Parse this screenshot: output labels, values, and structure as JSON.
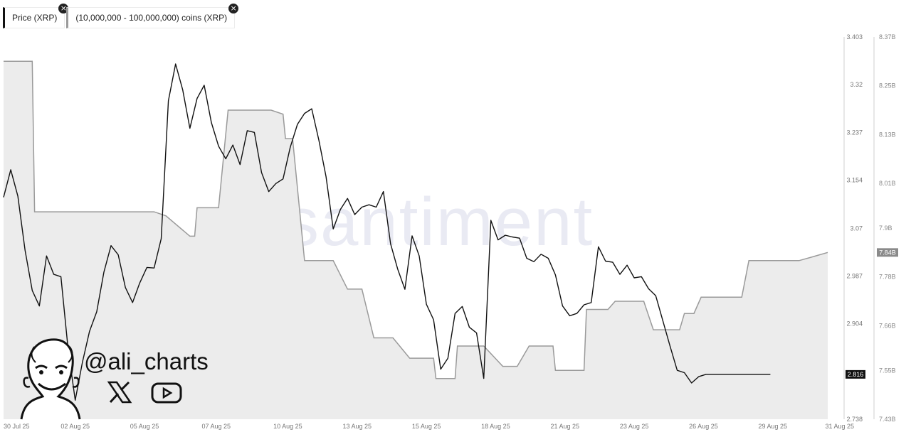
{
  "legend": {
    "price_label": "Price (XRP)",
    "holders_label": "(10,000,000 - 100,000,000) coins (XRP)",
    "close_icon": "×"
  },
  "watermark": "santiment",
  "branding": {
    "handle": "@ali_charts",
    "icons": [
      "x-logo-icon",
      "youtube-icon",
      "avatar-caricature"
    ]
  },
  "colors": {
    "price": "#111111",
    "holders_line": "#9a9a9a",
    "holders_fill": "#ececec",
    "axis": "#cfcfcf"
  },
  "chart_data": {
    "type": "line",
    "x_ticks": [
      "30 Jul 25",
      "02 Aug 25",
      "05 Aug 25",
      "07 Aug 25",
      "10 Aug 25",
      "13 Aug 25",
      "15 Aug 25",
      "18 Aug 25",
      "21 Aug 25",
      "23 Aug 25",
      "26 Aug 25",
      "29 Aug 25",
      "31 Aug 25"
    ],
    "y_left": {
      "ticks": [
        "3.403",
        "3.32",
        "3.237",
        "3.154",
        "3.07",
        "2.987",
        "2.904",
        "2.738"
      ],
      "range": [
        2.738,
        3.403
      ],
      "current_label": "2.816"
    },
    "y_right": {
      "ticks": [
        "8.37B",
        "8.25B",
        "8.13B",
        "8.01B",
        "7.9B",
        "7.78B",
        "7.66B",
        "7.55B",
        "7.43B"
      ],
      "range": [
        7.43,
        8.37
      ],
      "current_label": "7.84B"
    },
    "series": [
      {
        "name": "Price (XRP)",
        "axis": "left",
        "x": [
          0,
          0.3,
          0.6,
          0.9,
          1.2,
          1.5,
          1.8,
          2.1,
          2.4,
          2.7,
          3.0,
          3.3,
          3.6,
          3.9,
          4.2,
          4.5,
          4.8,
          5.1,
          5.4,
          5.7,
          6.0,
          6.3,
          6.6,
          6.9,
          7.2,
          7.5,
          7.8,
          8.1,
          8.4,
          8.7,
          9.0,
          9.3,
          9.6,
          9.9,
          10.2,
          10.5,
          10.8,
          11.1,
          11.4,
          11.7,
          12.0,
          12.3,
          12.6,
          12.9,
          13.2,
          13.5,
          13.8,
          14.1,
          14.4,
          14.7,
          15.0,
          15.3,
          15.6,
          15.9,
          16.2,
          16.5,
          16.8,
          17.1,
          17.4,
          17.7,
          18.0,
          18.3,
          18.6,
          18.9,
          19.2,
          19.5,
          19.8,
          20.1,
          20.4,
          20.7,
          21.0,
          21.3,
          21.6,
          21.9,
          22.2,
          22.5,
          22.8,
          23.1,
          23.4,
          23.7,
          24.0,
          24.3,
          24.6,
          24.9,
          25.2,
          25.5,
          25.8,
          26.1,
          26.4,
          26.7,
          27.0,
          27.3,
          27.6,
          27.9,
          28.2,
          28.5,
          28.8,
          29.1,
          29.4,
          29.7,
          30.0,
          30.3,
          30.6,
          30.9,
          31.2,
          31.5,
          31.8,
          32.1
        ],
        "values": [
          3.124,
          3.172,
          3.126,
          3.032,
          2.962,
          2.935,
          3.022,
          2.99,
          2.986,
          2.861,
          2.771,
          2.837,
          2.891,
          2.925,
          2.994,
          3.04,
          3.024,
          2.967,
          2.941,
          2.975,
          3.002,
          3.001,
          3.052,
          3.292,
          3.356,
          3.311,
          3.244,
          3.296,
          3.319,
          3.254,
          3.213,
          3.191,
          3.215,
          3.181,
          3.24,
          3.237,
          3.167,
          3.134,
          3.148,
          3.156,
          3.211,
          3.251,
          3.27,
          3.278,
          3.223,
          3.16,
          3.069,
          3.103,
          3.122,
          3.094,
          3.107,
          3.111,
          3.107,
          3.134,
          3.043,
          2.999,
          2.964,
          3.057,
          3.022,
          2.938,
          2.911,
          2.825,
          2.844,
          2.922,
          2.934,
          2.898,
          2.888,
          2.809,
          3.084,
          3.05,
          3.058,
          3.055,
          3.053,
          3.018,
          3.012,
          3.025,
          3.018,
          2.989,
          2.935,
          2.918,
          2.922,
          2.937,
          2.941,
          3.038,
          3.013,
          3.011,
          2.99,
          3.006,
          2.984,
          2.986,
          2.965,
          2.953,
          2.909,
          2.865,
          2.823,
          2.819,
          2.801,
          2.812,
          2.816,
          2.816,
          2.816,
          2.816,
          2.816,
          2.816,
          2.816,
          2.816,
          2.816,
          2.816
        ]
      },
      {
        "name": "(10,000,000 - 100,000,000) coins (XRP)",
        "axis": "right",
        "steps": [
          [
            0,
            8.31
          ],
          [
            1.2,
            8.31
          ],
          [
            1.3,
            7.94
          ],
          [
            2.4,
            7.94
          ],
          [
            3.4,
            7.94
          ],
          [
            5.2,
            7.94
          ],
          [
            6.3,
            7.94
          ],
          [
            6.8,
            7.93
          ],
          [
            7.8,
            7.88
          ],
          [
            8.0,
            7.88
          ],
          [
            8.1,
            7.95
          ],
          [
            9.0,
            7.95
          ],
          [
            9.4,
            8.19
          ],
          [
            11.2,
            8.19
          ],
          [
            11.7,
            8.18
          ],
          [
            11.8,
            8.12
          ],
          [
            12.1,
            8.12
          ],
          [
            12.6,
            7.82
          ],
          [
            13.8,
            7.82
          ],
          [
            14.4,
            7.75
          ],
          [
            15.0,
            7.75
          ],
          [
            15.5,
            7.63
          ],
          [
            16.3,
            7.63
          ],
          [
            17.0,
            7.58
          ],
          [
            18.0,
            7.58
          ],
          [
            18.1,
            7.53
          ],
          [
            18.9,
            7.53
          ],
          [
            19.0,
            7.61
          ],
          [
            20.1,
            7.61
          ],
          [
            20.9,
            7.56
          ],
          [
            21.5,
            7.56
          ],
          [
            22.0,
            7.61
          ],
          [
            23.0,
            7.61
          ],
          [
            23.1,
            7.55
          ],
          [
            24.3,
            7.55
          ],
          [
            24.4,
            7.7
          ],
          [
            25.3,
            7.7
          ],
          [
            25.6,
            7.72
          ],
          [
            26.8,
            7.72
          ],
          [
            27.2,
            7.65
          ],
          [
            28.3,
            7.65
          ],
          [
            28.5,
            7.69
          ],
          [
            28.9,
            7.69
          ],
          [
            29.2,
            7.73
          ],
          [
            30.9,
            7.73
          ],
          [
            31.2,
            7.82
          ],
          [
            32.1,
            7.82
          ],
          [
            33.3,
            7.82
          ],
          [
            33.9,
            7.83
          ],
          [
            34.5,
            7.84
          ]
        ]
      }
    ],
    "grid": false
  }
}
